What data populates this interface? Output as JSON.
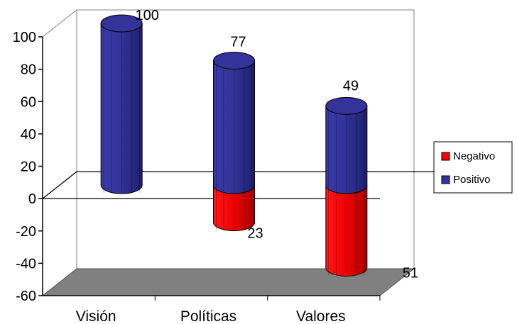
{
  "chart_data": {
    "type": "bar",
    "style": "3d-cylinder-stacked",
    "categories": [
      "Visión",
      "Políticas",
      "Valores"
    ],
    "series": [
      {
        "name": "Positivo",
        "values": [
          100,
          77,
          49
        ],
        "color": "#333399"
      },
      {
        "name": "Negativo",
        "values": [
          0,
          -23,
          -51
        ],
        "color": "#ff0000"
      }
    ],
    "data_labels": [
      "100",
      "77",
      "23",
      "49",
      "51"
    ],
    "ylim": [
      -60,
      100
    ],
    "yticks": [
      "100",
      "80",
      "60",
      "40",
      "20",
      "0",
      "-20",
      "-40",
      "-60"
    ],
    "legend": {
      "placement": "right",
      "entries": [
        "Negativo",
        "Positivo"
      ],
      "colors": [
        "#ff0000",
        "#333399"
      ]
    },
    "floor_color": "#808080",
    "grid": false
  }
}
